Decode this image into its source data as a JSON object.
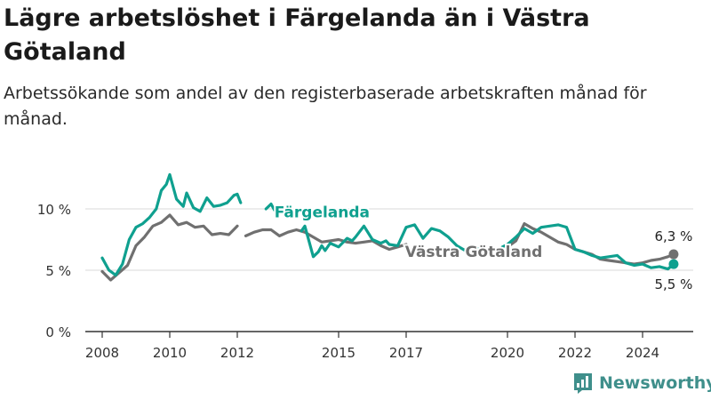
{
  "title": "Lägre arbetslöshet i Färgelanda än i Västra Götaland",
  "subtitle": "Arbetssökande som andel av den registerbaserade arbetskraften månad för månad.",
  "brand": {
    "name": "Newsworthy",
    "icon": "bar-chart-logo-icon"
  },
  "colors": {
    "fargelanda": "#0fa08f",
    "vastra": "#707070",
    "grid": "#d8d8d8",
    "axis": "#333333"
  },
  "chart_data": {
    "type": "line",
    "title": "Lägre arbetslöshet i Färgelanda än i Västra Götaland",
    "subtitle": "Arbetssökande som andel av den registerbaserade arbetskraften månad för månad.",
    "xlabel": "",
    "ylabel": "",
    "xlim": [
      2007.5,
      2025.5
    ],
    "ylim": [
      0,
      11
    ],
    "yticks": [
      {
        "value": 0,
        "label": "0 %"
      },
      {
        "value": 5,
        "label": "5 %"
      },
      {
        "value": 10,
        "label": "10 %"
      }
    ],
    "xticks": [
      {
        "value": 2008,
        "label": "2008"
      },
      {
        "value": 2010,
        "label": "2010"
      },
      {
        "value": 2012,
        "label": "2012"
      },
      {
        "value": 2015,
        "label": "2015"
      },
      {
        "value": 2017,
        "label": "2017"
      },
      {
        "value": 2020,
        "label": "2020"
      },
      {
        "value": 2022,
        "label": "2022"
      },
      {
        "value": 2024,
        "label": "2024"
      }
    ],
    "grid": true,
    "series": [
      {
        "name": "Västra Götaland",
        "color": "#707070",
        "end_label": "6,3 %",
        "segments": [
          {
            "x": [
              2008.0,
              2008.25,
              2008.5,
              2008.75,
              2009.0,
              2009.25,
              2009.5,
              2009.75,
              2010.0,
              2010.25,
              2010.5,
              2010.75,
              2011.0,
              2011.25,
              2011.5,
              2011.75,
              2012.0
            ],
            "y": [
              4.9,
              4.2,
              4.8,
              5.4,
              7.0,
              7.7,
              8.6,
              8.9,
              9.5,
              8.7,
              8.9,
              8.5,
              8.6,
              7.9,
              8.0,
              7.9,
              8.6
            ]
          },
          {
            "x": [
              2012.25,
              2012.5,
              2012.75,
              2013.0,
              2013.25,
              2013.5,
              2013.75,
              2014.0,
              2014.25,
              2014.5,
              2014.75,
              2015.0,
              2015.25,
              2015.5,
              2015.75,
              2016.0,
              2016.25,
              2016.5,
              2016.75,
              2017.0
            ],
            "y": [
              7.8,
              8.1,
              8.3,
              8.3,
              7.8,
              8.1,
              8.3,
              8.1,
              7.7,
              7.3,
              7.4,
              7.5,
              7.3,
              7.2,
              7.3,
              7.4,
              7.0,
              6.7,
              6.9,
              7.1
            ]
          },
          {
            "x": [
              2020.0,
              2020.25,
              2020.5,
              2020.75,
              2021.0,
              2021.25,
              2021.5,
              2021.75,
              2022.0,
              2022.25,
              2022.5,
              2022.75,
              2023.0,
              2023.25,
              2023.5,
              2023.75,
              2024.0,
              2024.25,
              2024.5,
              2024.75,
              2024.92
            ],
            "y": [
              6.9,
              7.4,
              8.8,
              8.4,
              8.1,
              7.7,
              7.3,
              7.1,
              6.7,
              6.5,
              6.3,
              5.9,
              5.8,
              5.7,
              5.6,
              5.5,
              5.6,
              5.8,
              5.9,
              6.1,
              6.3
            ]
          }
        ]
      },
      {
        "name": "Färgelanda",
        "color": "#0fa08f",
        "end_label": "5,5 %",
        "segments": [
          {
            "x": [
              2008.0,
              2008.2,
              2008.4,
              2008.6,
              2008.8,
              2009.0,
              2009.2,
              2009.4,
              2009.6,
              2009.75,
              2009.9,
              2010.0,
              2010.2,
              2010.4,
              2010.5,
              2010.7,
              2010.9,
              2011.1,
              2011.3,
              2011.5,
              2011.7,
              2011.9,
              2012.0,
              2012.1
            ],
            "y": [
              6.0,
              5.0,
              4.6,
              5.5,
              7.5,
              8.5,
              8.8,
              9.3,
              10.0,
              11.5,
              12.0,
              12.8,
              10.8,
              10.2,
              11.3,
              10.1,
              9.8,
              10.9,
              10.2,
              10.3,
              10.5,
              11.1,
              11.2,
              10.5
            ]
          },
          {
            "x": [
              2012.85,
              2013.0,
              2013.1
            ],
            "y": [
              10.0,
              10.4,
              9.9
            ]
          },
          {
            "x": [
              2013.9,
              2014.0,
              2014.1,
              2014.25,
              2014.4,
              2014.5,
              2014.6,
              2014.75,
              2015.0,
              2015.25,
              2015.4,
              2015.5,
              2015.75,
              2016.0,
              2016.25,
              2016.4,
              2016.5,
              2016.75,
              2017.0,
              2017.25,
              2017.5,
              2017.75,
              2018.0,
              2018.25,
              2018.5,
              2018.75,
              2019.0,
              2019.1
            ],
            "y": [
              8.2,
              8.6,
              7.6,
              6.1,
              6.5,
              7.0,
              6.6,
              7.2,
              6.9,
              7.6,
              7.4,
              7.7,
              8.6,
              7.5,
              7.2,
              7.4,
              7.1,
              7.0,
              8.5,
              8.7,
              7.6,
              8.4,
              8.2,
              7.7,
              7.0,
              6.6,
              6.8,
              6.8
            ]
          },
          {
            "x": [
              2019.85,
              2020.0,
              2020.25,
              2020.5,
              2020.75,
              2021.0,
              2021.25,
              2021.5,
              2021.75,
              2022.0,
              2022.25,
              2022.5,
              2022.75,
              2023.0,
              2023.25,
              2023.5,
              2023.75,
              2024.0,
              2024.25,
              2024.5,
              2024.75,
              2024.92
            ],
            "y": [
              6.9,
              7.1,
              7.7,
              8.4,
              8.0,
              8.5,
              8.6,
              8.7,
              8.5,
              6.7,
              6.5,
              6.2,
              6.0,
              6.1,
              6.2,
              5.6,
              5.4,
              5.5,
              5.2,
              5.3,
              5.1,
              5.5
            ]
          }
        ]
      }
    ],
    "annotations": [
      {
        "text": "Färgelanda",
        "series": "Färgelanda",
        "x": 2013.1,
        "y": 9.3
      },
      {
        "text": "Västra Götaland",
        "series": "Västra Götaland",
        "x": 2019.0,
        "y": 6.1
      }
    ]
  }
}
